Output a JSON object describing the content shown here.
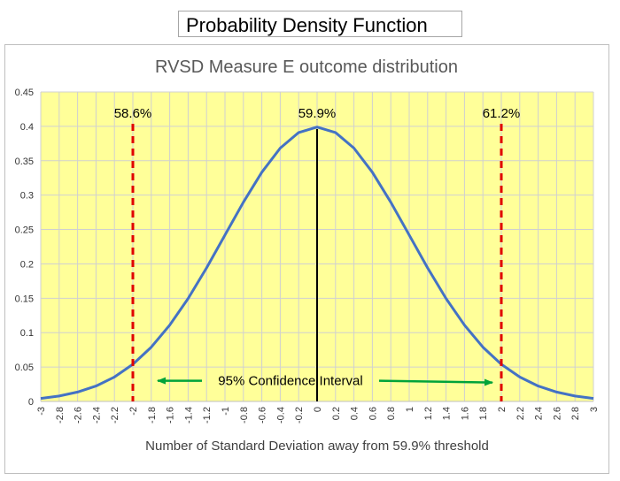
{
  "header": {
    "title": "Probability Density Function"
  },
  "chart_data": {
    "type": "line",
    "title": "RVSD Measure E outcome distribution",
    "xlabel": "Number of Standard Deviation away from 59.9% threshold",
    "ylabel": "",
    "xlim": [
      -3,
      3
    ],
    "ylim": [
      0,
      0.45
    ],
    "grid": true,
    "legend": "none",
    "x_ticks": [
      "-3",
      "-2.8",
      "-2.6",
      "-2.4",
      "-2.2",
      "-2",
      "-1.8",
      "-1.6",
      "-1.4",
      "-1.2",
      "-1",
      "-0.8",
      "-0.6",
      "-0.4",
      "-0.2",
      "0",
      "0.2",
      "0.4",
      "0.6",
      "0.8",
      "1",
      "1.2",
      "1.4",
      "1.6",
      "1.8",
      "2",
      "2.2",
      "2.4",
      "2.6",
      "2.8",
      "3"
    ],
    "y_ticks": [
      "0",
      "0.05",
      "0.1",
      "0.15",
      "0.2",
      "0.25",
      "0.3",
      "0.35",
      "0.4",
      "0.45"
    ],
    "series": [
      {
        "x": [
          -3,
          -2.8,
          -2.6,
          -2.4,
          -2.2,
          -2,
          -1.8,
          -1.6,
          -1.4,
          -1.2,
          -1,
          -0.8,
          -0.6,
          -0.4,
          -0.2,
          0,
          0.2,
          0.4,
          0.6,
          0.8,
          1,
          1.2,
          1.4,
          1.6,
          1.8,
          2,
          2.2,
          2.4,
          2.6,
          2.8,
          3
        ],
        "values": [
          0.0044,
          0.0079,
          0.0136,
          0.0224,
          0.0355,
          0.054,
          0.079,
          0.1109,
          0.1497,
          0.1942,
          0.242,
          0.2897,
          0.3332,
          0.3683,
          0.391,
          0.3989,
          0.391,
          0.3683,
          0.3332,
          0.2897,
          0.242,
          0.1942,
          0.1497,
          0.1109,
          0.079,
          0.054,
          0.0355,
          0.0224,
          0.0136,
          0.0079,
          0.0044
        ]
      }
    ],
    "markers": [
      {
        "x": -2,
        "label": "58.6%",
        "style": "dashed",
        "color": "#e00000"
      },
      {
        "x": 0,
        "label": "59.9%",
        "style": "solid",
        "color": "#000000"
      },
      {
        "x": 2,
        "label": "61.2%",
        "style": "dashed",
        "color": "#e00000"
      }
    ],
    "annotation": {
      "text": "95% Confidence Interval",
      "from_x": -2,
      "to_x": 2,
      "y": 0.03
    },
    "colors": {
      "plot_bg": "#ffff99",
      "line": "#4472c4",
      "grid": "#d0d0d0",
      "arrow": "#00a33a"
    }
  }
}
